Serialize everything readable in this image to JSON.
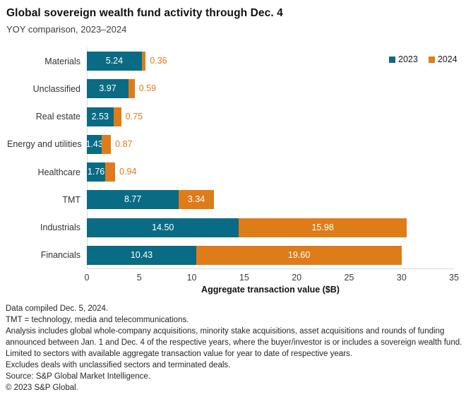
{
  "title": "Global sovereign wealth fund activity through Dec. 4",
  "subtitle": "YOY comparison, 2023–2024",
  "colors": {
    "series_2023": "#0A6B84",
    "series_2024": "#DE7C1A",
    "axis_line": "#d9d9d9",
    "inside_label": "#ffffff"
  },
  "chart_data": {
    "type": "bar",
    "orientation": "horizontal",
    "stacked": true,
    "title": "Global sovereign wealth fund activity through Dec. 4",
    "subtitle": "YOY comparison, 2023–2024",
    "categories": [
      "Materials",
      "Unclassified",
      "Real estate",
      "Energy and utilities",
      "Healthcare",
      "TMT",
      "Industrials",
      "Financials"
    ],
    "series": [
      {
        "name": "2023",
        "color": "#0A6B84",
        "values": [
          5.24,
          3.97,
          2.53,
          1.43,
          1.76,
          8.77,
          14.5,
          10.43
        ]
      },
      {
        "name": "2024",
        "color": "#DE7C1A",
        "values": [
          0.36,
          0.59,
          0.75,
          0.87,
          0.94,
          3.34,
          15.98,
          19.6
        ]
      }
    ],
    "xlabel": "Aggregate transaction value ($B)",
    "ylabel": "",
    "xlim": [
      0,
      35
    ],
    "xticks": [
      0,
      5,
      10,
      15,
      20,
      25,
      30,
      35
    ],
    "grid": false,
    "legend_position": "top-right",
    "value_label_format": "two decimals; white inside wide segments, orange outside narrow 2024 segments"
  },
  "footnotes": [
    "Data compiled Dec. 5, 2024.",
    "TMT = technology, media and telecommunications.",
    "Analysis includes global whole-company acquisitions, minority stake acquisitions, asset acquisitions and rounds of funding announced between Jan. 1 and Dec. 4 of the respective years, where the buyer/investor is or includes a sovereign wealth fund.",
    "Limited to sectors with available aggregate transaction value for year to date of respective years.",
    "Excludes deals with unclassified sectors and terminated deals.",
    "Source: S&P Global Market Intelligence.",
    "© 2023 S&P Global."
  ]
}
